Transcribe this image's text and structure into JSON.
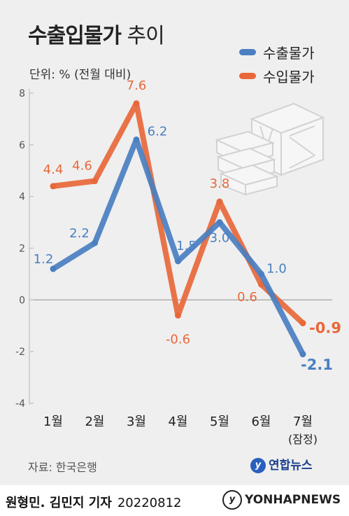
{
  "header": {
    "title_bold": "수출입물가",
    "title_light": "추이",
    "unit": "단위: % (전월 대비)"
  },
  "legend": [
    {
      "label": "수출물가",
      "color": "#4a7fc1"
    },
    {
      "label": "수입물가",
      "color": "#e8683a"
    }
  ],
  "chart_data": {
    "type": "line",
    "title": "수출입물가 추이",
    "unit": "단위: % (전월 대비)",
    "categories": [
      "1월",
      "2월",
      "3월",
      "4월",
      "5월",
      "6월",
      "7월"
    ],
    "category_sublabels": [
      "",
      "",
      "",
      "",
      "",
      "",
      "(잠정)"
    ],
    "ylim": [
      -4,
      8
    ],
    "yticks": [
      "-4",
      "-2",
      "0",
      "2",
      "4",
      "6",
      "8"
    ],
    "grid": false,
    "legend_position": "top-right",
    "series": [
      {
        "name": "수출물가",
        "color": "#4a7fc1",
        "values": [
          1.2,
          2.2,
          6.2,
          1.5,
          3.0,
          1.0,
          -2.1
        ],
        "labels": [
          "1.2",
          "2.2",
          "6.2",
          "1.5",
          "3.0",
          "1.0",
          "-2.1"
        ]
      },
      {
        "name": "수입물가",
        "color": "#e8683a",
        "values": [
          4.4,
          4.6,
          7.6,
          -0.6,
          3.8,
          0.6,
          -0.9
        ],
        "labels": [
          "4.4",
          "4.6",
          "7.6",
          "-0.6",
          "3.8",
          "0.6",
          "-0.9"
        ]
      }
    ]
  },
  "footer": {
    "source": "자료: 한국은행",
    "brand": "연합뉴스",
    "authors": "원형민. 김민지 기자",
    "date": "20220812",
    "agency": "YONHAPNEWS"
  }
}
